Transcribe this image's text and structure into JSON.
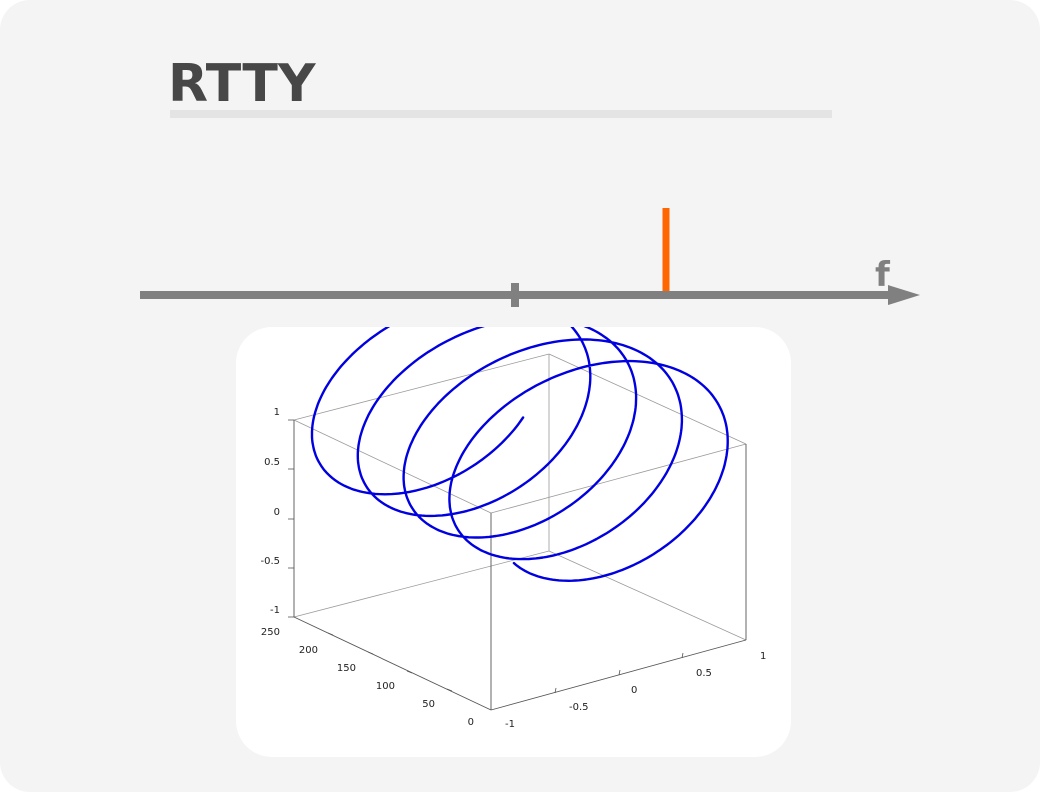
{
  "slide": {
    "title": "RTTY"
  },
  "spectrum": {
    "axis_label": "f",
    "axis_color": "#808080",
    "marker_color": "#ff6600",
    "center_tick": 0,
    "carrier_offset": 1
  },
  "chart_data": {
    "type": "line3d",
    "series": [
      {
        "color": "#0000e0",
        "curve": "helix",
        "x": "cos(t)",
        "y": "sin(t)",
        "z_range": [
          0,
          250
        ],
        "turns": 4.3
      }
    ],
    "x_ticks": [
      "-1",
      "-0.5",
      "0",
      "0.5",
      "1"
    ],
    "y_ticks": [
      "0",
      "50",
      "100",
      "150",
      "200",
      "250"
    ],
    "z_ticks": [
      "1",
      "0.5",
      "0",
      "-0.5",
      "-1"
    ],
    "xlim": [
      -1,
      1
    ],
    "ylim": [
      0,
      250
    ],
    "zlim": [
      -1,
      1
    ],
    "grid": false
  }
}
